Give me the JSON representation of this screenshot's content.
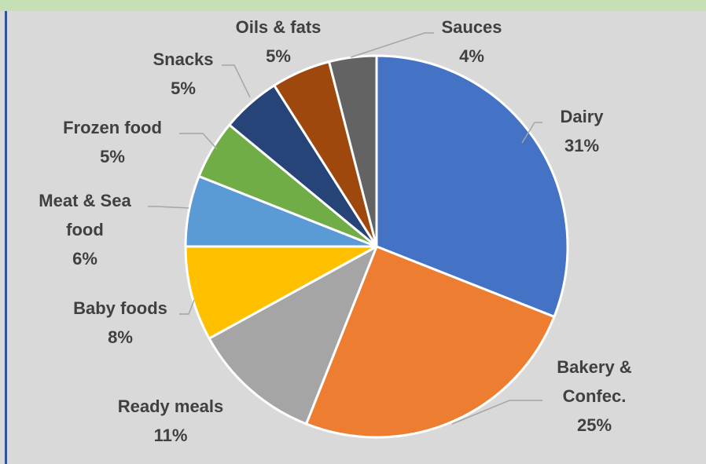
{
  "chart_data": {
    "type": "pie",
    "title": "",
    "legend": "none",
    "start_angle_deg": 0,
    "direction": "clockwise",
    "slices": [
      {
        "label_lines": [
          "Dairy"
        ],
        "value": 31,
        "value_label": "31%",
        "color": "#4472c4"
      },
      {
        "label_lines": [
          "Bakery &",
          "Confec."
        ],
        "value": 25,
        "value_label": "25%",
        "color": "#ed7d31"
      },
      {
        "label_lines": [
          "Ready meals"
        ],
        "value": 11,
        "value_label": "11%",
        "color": "#a5a5a5"
      },
      {
        "label_lines": [
          "Baby foods"
        ],
        "value": 8,
        "value_label": "8%",
        "color": "#ffc000"
      },
      {
        "label_lines": [
          "Meat & Sea",
          "food"
        ],
        "value": 6,
        "value_label": "6%",
        "color": "#5b9bd5"
      },
      {
        "label_lines": [
          "Frozen food"
        ],
        "value": 5,
        "value_label": "5%",
        "color": "#70ad47"
      },
      {
        "label_lines": [
          "Snacks"
        ],
        "value": 5,
        "value_label": "5%",
        "color": "#264478"
      },
      {
        "label_lines": [
          "Oils & fats"
        ],
        "value": 5,
        "value_label": "5%",
        "color": "#9e480e"
      },
      {
        "label_lines": [
          "Sauces"
        ],
        "value": 4,
        "value_label": "4%",
        "color": "#636363"
      }
    ],
    "frame_colors": {
      "background": "#d9d9d9",
      "top_band": "#c5e0b4",
      "left_rule": "#2f5597",
      "slice_border": "#ffffff",
      "leader_line": "#a6a6a6",
      "label_text": "#404040"
    }
  }
}
